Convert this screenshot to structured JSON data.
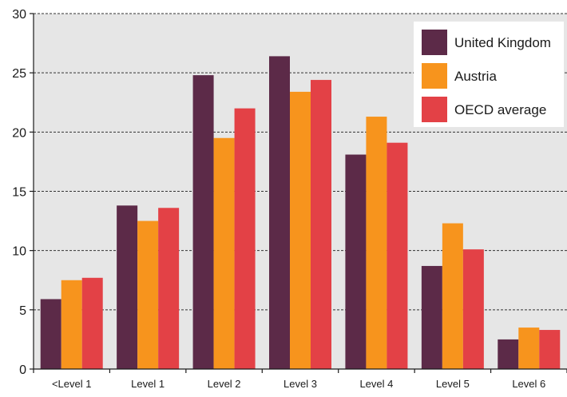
{
  "chart_data": {
    "type": "bar",
    "title": "",
    "xlabel": "",
    "ylabel": "",
    "ylim": [
      0,
      30
    ],
    "yticks": [
      0,
      5,
      10,
      15,
      20,
      25,
      30
    ],
    "grid": "horizontal-dashed",
    "legend_position": "top-right",
    "categories": [
      "<Level 1",
      "Level 1",
      "Level 2",
      "Level 3",
      "Level 4",
      "Level 5",
      "Level 6"
    ],
    "series": [
      {
        "name": "United Kingdom",
        "color": "#5c2a48",
        "values": [
          5.9,
          13.8,
          24.8,
          26.4,
          18.1,
          8.7,
          2.5
        ]
      },
      {
        "name": "Austria",
        "color": "#f7941d",
        "values": [
          7.5,
          12.5,
          19.5,
          23.4,
          21.3,
          12.3,
          3.5
        ]
      },
      {
        "name": "OECD average",
        "color": "#e34146",
        "values": [
          7.7,
          13.6,
          22.0,
          24.4,
          19.1,
          10.1,
          3.3
        ]
      }
    ],
    "plot_background": "#e6e6e6"
  }
}
